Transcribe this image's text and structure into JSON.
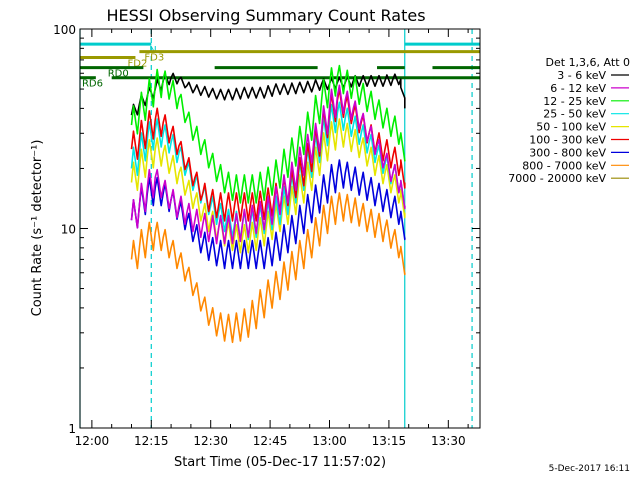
{
  "chart_data": {
    "type": "line",
    "title": "HESSI Observing Summary Count Rates",
    "xlabel": "Start Time (05-Dec-17 11:57:02)",
    "ylabel": "Count Rate (s⁻¹ detector⁻¹)",
    "yscale": "log",
    "xlim_minutes": [
      -3,
      98
    ],
    "xlim_labels": [
      "11:57",
      "13:38"
    ],
    "ylim": [
      1,
      100
    ],
    "xticks": [
      {
        "label": "12:00",
        "min": 0
      },
      {
        "label": "12:15",
        "min": 15
      },
      {
        "label": "12:30",
        "min": 30
      },
      {
        "label": "12:45",
        "min": 45
      },
      {
        "label": "13:00",
        "min": 60
      },
      {
        "label": "13:15",
        "min": 75
      },
      {
        "label": "13:30",
        "min": 90
      }
    ],
    "yticks": [
      {
        "label": "1",
        "value": 1
      },
      {
        "label": "10",
        "value": 10
      },
      {
        "label": "100",
        "value": 100
      }
    ],
    "grid": false,
    "legend_position": "right",
    "legend_title": "Det 1,3,6, Att 0",
    "x_minutes": [
      10,
      12,
      14,
      16,
      18,
      20,
      22,
      24,
      26,
      28,
      30,
      32,
      34,
      36,
      38,
      40,
      42,
      44,
      46,
      48,
      50,
      52,
      54,
      56,
      58,
      60,
      62,
      64,
      66,
      68,
      70,
      72,
      74,
      76,
      78,
      79
    ],
    "series": [
      {
        "name": "3 - 6 keV",
        "color": "#000000",
        "values": [
          37,
          42,
          46,
          50,
          55,
          57,
          56,
          52,
          50,
          49,
          48,
          47,
          47,
          47,
          48,
          48,
          48,
          48,
          50,
          50,
          50,
          51,
          51,
          52,
          53,
          53,
          54,
          54,
          55,
          55,
          55,
          55,
          55,
          56,
          56,
          40
        ]
      },
      {
        "name": "6 - 12 keV",
        "color": "#cc00cc",
        "values": [
          11,
          13,
          16,
          18,
          16,
          14,
          13,
          12,
          11,
          10.5,
          10,
          10,
          10,
          10,
          10.5,
          11,
          11.5,
          12,
          13,
          15,
          17,
          20,
          24,
          27,
          31,
          40,
          46,
          44,
          40,
          35,
          30,
          26,
          22,
          19,
          17,
          13
        ]
      },
      {
        "name": "12 - 25 keV",
        "color": "#00ee00",
        "values": [
          33,
          38,
          45,
          52,
          56,
          50,
          45,
          36,
          30,
          26,
          22,
          19,
          17,
          16,
          16,
          16,
          16,
          17,
          18,
          20,
          23,
          26,
          30,
          36,
          44,
          52,
          58,
          55,
          52,
          48,
          44,
          40,
          36,
          33,
          30,
          22
        ]
      },
      {
        "name": "25 - 50 keV",
        "color": "#00e5e5",
        "values": [
          20,
          24,
          28,
          31,
          30,
          27,
          24,
          20,
          17,
          15,
          13,
          12,
          11,
          10.5,
          10.5,
          10.5,
          11,
          11.5,
          12,
          13,
          15,
          17,
          20,
          23,
          28,
          34,
          38,
          36,
          33,
          30,
          27,
          24,
          21,
          19,
          17,
          13
        ]
      },
      {
        "name": "50 - 100 keV",
        "color": "#e5e500",
        "values": [
          17,
          20,
          23,
          25,
          24,
          21,
          19,
          16,
          14,
          12,
          11,
          10,
          9.5,
          9,
          9,
          9,
          9.5,
          10,
          11,
          12,
          13,
          15,
          17,
          20,
          24,
          28,
          31,
          30,
          28,
          26,
          23,
          21,
          19,
          17,
          15,
          12
        ]
      },
      {
        "name": "100 - 300 keV",
        "color": "#ee0000",
        "values": [
          25,
          28,
          32,
          35,
          34,
          30,
          26,
          21,
          18,
          15,
          14,
          13,
          13,
          13,
          13,
          13,
          13,
          13.5,
          14,
          15,
          16,
          18,
          21,
          25,
          30,
          38,
          44,
          42,
          38,
          34,
          30,
          27,
          25,
          23,
          21,
          17
        ]
      },
      {
        "name": "300 - 800 keV",
        "color": "#0000dd",
        "values": [
          11,
          13,
          15,
          16,
          15,
          14,
          12.5,
          11,
          9.5,
          8.5,
          8,
          7.5,
          7.5,
          7.5,
          7.5,
          7.5,
          7.5,
          7.5,
          8,
          8.5,
          9.5,
          10.5,
          12,
          13.5,
          15,
          17,
          19,
          19,
          18,
          17,
          16,
          15,
          14,
          13,
          12,
          9
        ]
      },
      {
        "name": "800 - 7000 keV",
        "color": "#ff8800",
        "values": [
          7,
          8,
          9,
          9.5,
          9,
          8,
          7,
          6,
          5,
          4.2,
          3.6,
          3.3,
          3.2,
          3.2,
          3.3,
          3.5,
          4,
          4.5,
          5,
          5.5,
          6.2,
          7,
          8,
          9,
          10.5,
          12,
          13,
          13,
          12.5,
          12,
          11,
          10.5,
          10,
          9,
          8,
          6
        ]
      },
      {
        "name": "7000 - 20000 keV",
        "color": "#998800",
        "values": []
      }
    ],
    "annotations": [
      {
        "label": "N",
        "color": "#00cccc",
        "y": 84,
        "segments": [
          [
            -3,
            15
          ],
          [
            79,
            98
          ]
        ]
      },
      {
        "label": "FD2",
        "color": "#999900",
        "y": 72,
        "segments": [
          [
            -3,
            11
          ]
        ]
      },
      {
        "label": "FD3",
        "color": "#999900",
        "y": 77,
        "segments": [
          [
            12,
            98
          ]
        ]
      },
      {
        "label": "RD0",
        "color": "#006600",
        "y": 64,
        "segments": [
          [
            -3,
            13
          ],
          [
            31,
            57
          ],
          [
            72,
            79
          ],
          [
            86,
            98
          ]
        ]
      },
      {
        "label": "RD6",
        "color": "#006600",
        "y": 57,
        "segments": [
          [
            -3,
            1
          ],
          [
            5,
            98
          ]
        ]
      }
    ],
    "vlines": [
      {
        "x": -3,
        "color": "#00cccc",
        "style": "solid"
      },
      {
        "x": 15,
        "color": "#00cccc",
        "style": "dashed"
      },
      {
        "x": 79,
        "color": "#00cccc",
        "style": "solid"
      },
      {
        "x": 96,
        "color": "#00cccc",
        "style": "dashed"
      }
    ]
  },
  "footer_date": "5-Dec-2017 16:11"
}
